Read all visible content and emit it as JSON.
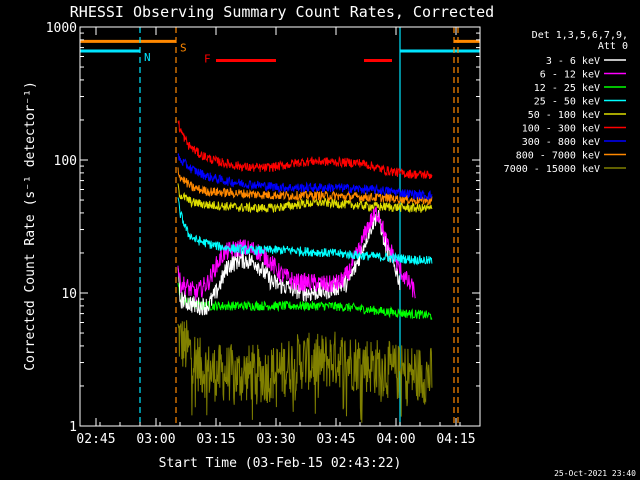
{
  "chart_data": {
    "type": "line",
    "title": "RHESSI Observing Summary Count Rates, Corrected",
    "xlabel": "Start Time (03-Feb-15 02:43:22)",
    "ylabel": "Corrected Count Rate (s⁻¹ detector⁻¹)",
    "footer_date": "25-Oct-2021 23:40",
    "xlim_minutes": [
      -2,
      98
    ],
    "ylim": [
      1,
      1000
    ],
    "y_scale": "log",
    "x_ticks": [
      {
        "label": "02:45",
        "minutes": 2
      },
      {
        "label": "03:00",
        "minutes": 17
      },
      {
        "label": "03:15",
        "minutes": 32
      },
      {
        "label": "03:30",
        "minutes": 47
      },
      {
        "label": "03:45",
        "minutes": 62
      },
      {
        "label": "04:00",
        "minutes": 77
      },
      {
        "label": "04:15",
        "minutes": 92
      }
    ],
    "y_ticks": [
      {
        "label": "1",
        "value": 1
      },
      {
        "label": "10",
        "value": 10
      },
      {
        "label": "100",
        "value": 100
      },
      {
        "label": "1000",
        "value": 1000
      }
    ],
    "legend": {
      "position": "right",
      "header": [
        "Det 1,3,5,6,7,9,",
        "Att 0"
      ],
      "entries": [
        {
          "label": "3 - 6 keV",
          "color": "#ffffff"
        },
        {
          "label": "6 - 12 keV",
          "color": "#ff00ff"
        },
        {
          "label": "12 - 25 keV",
          "color": "#00ff00"
        },
        {
          "label": "25 - 50 keV",
          "color": "#00ffff"
        },
        {
          "label": "50 - 100 keV",
          "color": "#dddd00"
        },
        {
          "label": "100 - 300 keV",
          "color": "#ff0000"
        },
        {
          "label": "300 - 800 keV",
          "color": "#0000ff"
        },
        {
          "label": "800 - 7000 keV",
          "color": "#ff8800"
        },
        {
          "label": "7000 - 15000 keV",
          "color": "#808000"
        }
      ]
    },
    "status_bars": [
      {
        "label": "S",
        "color": "#ff8800",
        "y": 780,
        "segments": [
          [
            -2,
            22
          ],
          [
            91.5,
            98
          ]
        ]
      },
      {
        "label": "N",
        "color": "#00e5ff",
        "y": 660,
        "segments": [
          [
            -2,
            13
          ],
          [
            78,
            98
          ]
        ]
      },
      {
        "label": "F",
        "color": "#ff0000",
        "y": 560,
        "segments": [
          [
            32,
            47
          ],
          [
            69,
            76
          ]
        ]
      }
    ],
    "markers": [
      {
        "minutes": 13,
        "color": "#00e5ff",
        "style": "dashed"
      },
      {
        "minutes": 22,
        "color": "#ff8800",
        "style": "dashed"
      },
      {
        "minutes": 78,
        "color": "#00e5ff",
        "style": "solid"
      },
      {
        "minutes": 91.5,
        "color": "#ff8800",
        "style": "dashed"
      },
      {
        "minutes": 92.5,
        "color": "#ff8800",
        "style": "dashed"
      }
    ],
    "series": [
      {
        "name": "3 - 6 keV",
        "color": "#ffffff",
        "x": [
          22.5,
          23,
          25,
          27,
          30,
          32,
          35,
          38,
          42,
          46,
          50,
          55,
          60,
          65,
          67,
          70,
          72,
          73,
          74,
          75,
          76,
          77,
          78
        ],
        "y": [
          14,
          9,
          8.5,
          8,
          8,
          10,
          16,
          18,
          17,
          12,
          11,
          10,
          10.5,
          12,
          16,
          28,
          38,
          35,
          25,
          20,
          18,
          15,
          12
        ]
      },
      {
        "name": "6 - 12 keV",
        "color": "#ff00ff",
        "x": [
          22.5,
          23,
          25,
          27,
          30,
          32,
          34,
          38,
          42,
          45,
          48,
          52,
          56,
          60,
          63,
          65,
          68,
          70,
          72,
          73,
          74,
          75,
          76,
          78,
          80,
          82
        ],
        "y": [
          16,
          12,
          11,
          10,
          12,
          16,
          20,
          22,
          21,
          18,
          14,
          12,
          12,
          11.5,
          12,
          14,
          22,
          32,
          40,
          38,
          28,
          22,
          20,
          15,
          12,
          10
        ]
      },
      {
        "name": "12 - 25 keV",
        "color": "#00ff00",
        "x": [
          22.5,
          23,
          25,
          28,
          32,
          36,
          40,
          45,
          50,
          55,
          60,
          65,
          70,
          75,
          80,
          85,
          86
        ],
        "y": [
          12,
          9,
          8.5,
          8,
          8,
          8,
          8,
          8,
          8,
          8,
          8,
          7.8,
          7.5,
          7.2,
          7,
          6.8,
          6.7
        ]
      },
      {
        "name": "25 - 50 keV",
        "color": "#00ffff",
        "x": [
          22.5,
          23,
          25,
          27,
          29,
          31,
          34,
          40,
          45,
          50,
          55,
          60,
          65,
          70,
          75,
          80,
          85,
          86
        ],
        "y": [
          50,
          40,
          28,
          25,
          24,
          23,
          22,
          21,
          21,
          21,
          20.5,
          20,
          19.5,
          19,
          18.5,
          18,
          17.5,
          17.5
        ]
      },
      {
        "name": "50 - 100 keV",
        "color": "#dddd00",
        "x": [
          22.5,
          23,
          26,
          30,
          34,
          38,
          42,
          46,
          50,
          54,
          58,
          62,
          66,
          70,
          74,
          78,
          82,
          86
        ],
        "y": [
          62,
          55,
          48,
          46,
          45,
          44,
          43.5,
          43.5,
          45,
          47,
          48,
          47,
          46,
          45,
          44.5,
          44,
          43.5,
          43
        ]
      },
      {
        "name": "100 - 300 keV",
        "color": "#ff0000",
        "x": [
          22.5,
          23,
          25,
          28,
          32,
          36,
          40,
          44,
          48,
          52,
          56,
          60,
          64,
          68,
          70,
          72,
          74,
          78,
          82,
          86
        ],
        "y": [
          200,
          170,
          130,
          110,
          98,
          92,
          88,
          87,
          90,
          95,
          98,
          97,
          96,
          95,
          92,
          88,
          84,
          80,
          78,
          77
        ]
      },
      {
        "name": "300 - 800 keV",
        "color": "#0000ff",
        "x": [
          22.5,
          23,
          26,
          30,
          34,
          38,
          42,
          46,
          50,
          54,
          58,
          62,
          66,
          70,
          74,
          78,
          82,
          86
        ],
        "y": [
          110,
          100,
          85,
          75,
          70,
          67,
          65,
          63,
          62,
          62,
          62,
          62,
          61,
          60,
          59,
          57,
          55,
          54
        ]
      },
      {
        "name": "800 - 7000 keV",
        "color": "#ff8800",
        "x": [
          22.5,
          23,
          26,
          30,
          34,
          38,
          42,
          46,
          50,
          54,
          58,
          62,
          66,
          70,
          74,
          78,
          82,
          86
        ],
        "y": [
          85,
          75,
          62,
          58,
          57,
          56,
          55,
          54.5,
          54,
          54,
          54,
          53.5,
          53,
          52.5,
          52,
          51,
          50,
          49.5
        ]
      },
      {
        "name": "7000 - 15000 keV",
        "color": "#808000",
        "x": [
          22.5,
          23,
          24,
          25,
          26,
          27,
          28,
          30,
          32,
          34,
          36,
          38,
          40,
          42,
          44,
          46,
          48,
          50,
          52,
          54,
          56,
          58,
          60,
          62,
          64,
          66,
          68,
          70,
          72,
          74,
          76,
          78,
          80,
          82,
          84,
          86
        ],
        "y": [
          5,
          4.5,
          4,
          3.8,
          3.5,
          3.2,
          2.8,
          2.6,
          2.5,
          2.5,
          2.5,
          2.4,
          2.5,
          2.5,
          2.4,
          2.5,
          2.6,
          2.8,
          3,
          3.1,
          3,
          3,
          3.1,
          3.2,
          3.1,
          3,
          3,
          2.9,
          2.8,
          2.7,
          2.6,
          2.5,
          2.5,
          2.5,
          2.4,
          2.4
        ]
      }
    ]
  }
}
